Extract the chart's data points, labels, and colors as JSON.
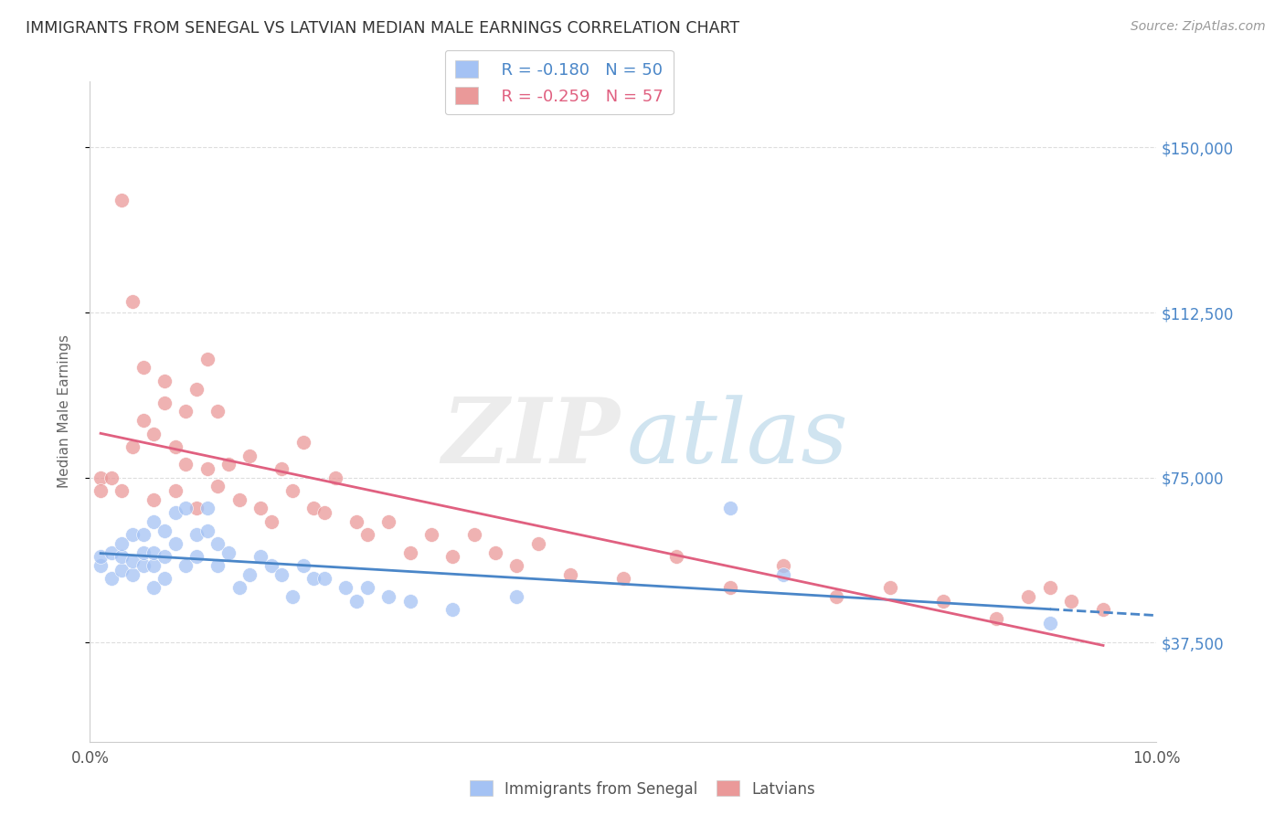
{
  "title": "IMMIGRANTS FROM SENEGAL VS LATVIAN MEDIAN MALE EARNINGS CORRELATION CHART",
  "source": "Source: ZipAtlas.com",
  "ylabel": "Median Male Earnings",
  "xlim": [
    0.0,
    0.1
  ],
  "ylim": [
    15000,
    165000
  ],
  "yticks": [
    37500,
    75000,
    112500,
    150000
  ],
  "ytick_labels": [
    "$37,500",
    "$75,000",
    "$112,500",
    "$150,000"
  ],
  "xticks": [
    0.0,
    0.02,
    0.04,
    0.06,
    0.08,
    0.1
  ],
  "xtick_labels": [
    "0.0%",
    "",
    "",
    "",
    "",
    "10.0%"
  ],
  "legend_labels": [
    "Immigrants from Senegal",
    "Latvians"
  ],
  "legend_r_blue": "R = -0.180",
  "legend_n_blue": "N = 50",
  "legend_r_pink": "R = -0.259",
  "legend_n_pink": "N = 57",
  "blue_color": "#a4c2f4",
  "pink_color": "#ea9999",
  "blue_line_color": "#4a86c8",
  "pink_line_color": "#e06080",
  "background_color": "#ffffff",
  "grid_color": "#dddddd",
  "blue_scatter_x": [
    0.001,
    0.001,
    0.002,
    0.002,
    0.003,
    0.003,
    0.003,
    0.004,
    0.004,
    0.004,
    0.005,
    0.005,
    0.005,
    0.006,
    0.006,
    0.006,
    0.006,
    0.007,
    0.007,
    0.007,
    0.008,
    0.008,
    0.009,
    0.009,
    0.01,
    0.01,
    0.011,
    0.011,
    0.012,
    0.012,
    0.013,
    0.014,
    0.015,
    0.016,
    0.017,
    0.018,
    0.019,
    0.02,
    0.021,
    0.022,
    0.024,
    0.025,
    0.026,
    0.028,
    0.03,
    0.034,
    0.04,
    0.06,
    0.065,
    0.09
  ],
  "blue_scatter_y": [
    55000,
    57000,
    52000,
    58000,
    54000,
    57000,
    60000,
    53000,
    56000,
    62000,
    55000,
    58000,
    62000,
    50000,
    55000,
    58000,
    65000,
    52000,
    57000,
    63000,
    60000,
    67000,
    55000,
    68000,
    57000,
    62000,
    63000,
    68000,
    55000,
    60000,
    58000,
    50000,
    53000,
    57000,
    55000,
    53000,
    48000,
    55000,
    52000,
    52000,
    50000,
    47000,
    50000,
    48000,
    47000,
    45000,
    48000,
    68000,
    53000,
    42000
  ],
  "pink_scatter_x": [
    0.001,
    0.001,
    0.002,
    0.003,
    0.003,
    0.004,
    0.004,
    0.005,
    0.005,
    0.006,
    0.006,
    0.007,
    0.007,
    0.008,
    0.008,
    0.009,
    0.009,
    0.01,
    0.01,
    0.011,
    0.011,
    0.012,
    0.012,
    0.013,
    0.014,
    0.015,
    0.016,
    0.017,
    0.018,
    0.019,
    0.02,
    0.021,
    0.022,
    0.023,
    0.025,
    0.026,
    0.028,
    0.03,
    0.032,
    0.034,
    0.036,
    0.038,
    0.04,
    0.042,
    0.045,
    0.05,
    0.055,
    0.06,
    0.065,
    0.07,
    0.075,
    0.08,
    0.085,
    0.088,
    0.09,
    0.092,
    0.095
  ],
  "pink_scatter_y": [
    75000,
    72000,
    75000,
    138000,
    72000,
    115000,
    82000,
    100000,
    88000,
    85000,
    70000,
    92000,
    97000,
    82000,
    72000,
    90000,
    78000,
    95000,
    68000,
    102000,
    77000,
    90000,
    73000,
    78000,
    70000,
    80000,
    68000,
    65000,
    77000,
    72000,
    83000,
    68000,
    67000,
    75000,
    65000,
    62000,
    65000,
    58000,
    62000,
    57000,
    62000,
    58000,
    55000,
    60000,
    53000,
    52000,
    57000,
    50000,
    55000,
    48000,
    50000,
    47000,
    43000,
    48000,
    50000,
    47000,
    45000
  ]
}
